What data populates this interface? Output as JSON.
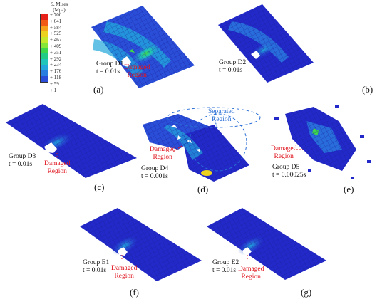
{
  "legend": {
    "title_line1": "S, Mises",
    "title_line2": "(Mpa)",
    "values": [
      "+ 700",
      "+ 641",
      "+ 584",
      "+ 525",
      "+ 467",
      "+ 409",
      "+ 351",
      "+ 292",
      "+ 234",
      "+ 176",
      "+ 118",
      "+ 59",
      "+ 1"
    ],
    "colors": [
      "#e8201a",
      "#f05a14",
      "#f5a21a",
      "#ecd21e",
      "#c6e82a",
      "#86e638",
      "#3ed64a",
      "#22cc86",
      "#20c4b8",
      "#22a6dc",
      "#2a7ee0",
      "#2a4ed8",
      "#2229c8"
    ]
  },
  "panels": {
    "a": {
      "label": "(a)",
      "group": "Group D1",
      "time": "t = 0.01s",
      "damaged_line1": "Damaged",
      "damaged_line2": "Region"
    },
    "b": {
      "label": "(b)",
      "group": "Group D2",
      "time": "t = 0.01s"
    },
    "c": {
      "label": "(c)",
      "group": "Group D3",
      "time": "t = 0.01s",
      "damaged_line1": "Damaged",
      "damaged_line2": "Region"
    },
    "d": {
      "label": "(d)",
      "group": "Group D4",
      "time": "t = 0.001s",
      "damaged_line1": "Damaged",
      "damaged_line2": "Region",
      "separated_line1": "Separated",
      "separated_line2": "Region"
    },
    "e": {
      "label": "(e)",
      "group": "Group D5",
      "time": "t = 0.00025s",
      "damaged_line1": "Damaged",
      "damaged_line2": "Region"
    },
    "f": {
      "label": "(f)",
      "group": "Group E1",
      "time": "t = 0.01s",
      "damaged_line1": "Damaged",
      "damaged_line2": "Region"
    },
    "g": {
      "label": "(g)",
      "group": "Group E2",
      "time": "t = 0.01s",
      "damaged_line1": "Damaged",
      "damaged_line2": "Region"
    }
  },
  "colors": {
    "plate": "#2229c8",
    "mesh": "#1a1f9a",
    "damaged_text": "#e0141e",
    "separated_text": "#2a6fd6"
  }
}
